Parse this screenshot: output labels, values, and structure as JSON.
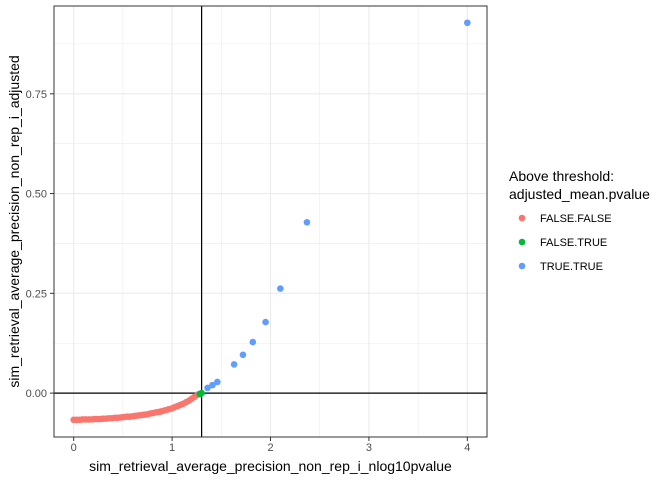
{
  "chart_data": {
    "type": "scatter",
    "xlabel": "sim_retrieval_average_precision_non_rep_i_nlog10pvalue",
    "ylabel": "sim_retrieval_average_precision_non_rep_i_adjusted",
    "xlim": [
      -0.2,
      4.2
    ],
    "ylim": [
      -0.11,
      0.97
    ],
    "x_ticks": [
      0,
      1,
      2,
      3,
      4
    ],
    "x_tick_labels": [
      "0",
      "1",
      "2",
      "3",
      "4"
    ],
    "y_ticks": [
      0.0,
      0.25,
      0.5,
      0.75
    ],
    "y_tick_labels": [
      "0.00",
      "0.25",
      "0.50",
      "0.75"
    ],
    "grid": true,
    "reference_lines": {
      "vertical_x": 1.3,
      "horizontal_y": 0.0
    },
    "legend": {
      "title_line1": "Above threshold:",
      "title_line2": "adjusted_mean.pvalue",
      "placement": "right"
    },
    "series": [
      {
        "name": "FALSE.FALSE",
        "color": "#F8766D",
        "points": [
          [
            0.0,
            -0.067
          ],
          [
            0.03,
            -0.067
          ],
          [
            0.06,
            -0.067
          ],
          [
            0.09,
            -0.066
          ],
          [
            0.12,
            -0.066
          ],
          [
            0.15,
            -0.066
          ],
          [
            0.18,
            -0.066
          ],
          [
            0.21,
            -0.065
          ],
          [
            0.24,
            -0.065
          ],
          [
            0.27,
            -0.065
          ],
          [
            0.3,
            -0.064
          ],
          [
            0.33,
            -0.064
          ],
          [
            0.36,
            -0.063
          ],
          [
            0.39,
            -0.063
          ],
          [
            0.42,
            -0.062
          ],
          [
            0.45,
            -0.062
          ],
          [
            0.48,
            -0.061
          ],
          [
            0.51,
            -0.06
          ],
          [
            0.54,
            -0.059
          ],
          [
            0.57,
            -0.059
          ],
          [
            0.6,
            -0.058
          ],
          [
            0.63,
            -0.057
          ],
          [
            0.66,
            -0.056
          ],
          [
            0.69,
            -0.055
          ],
          [
            0.72,
            -0.054
          ],
          [
            0.75,
            -0.053
          ],
          [
            0.78,
            -0.051
          ],
          [
            0.81,
            -0.05
          ],
          [
            0.84,
            -0.048
          ],
          [
            0.87,
            -0.047
          ],
          [
            0.9,
            -0.045
          ],
          [
            0.93,
            -0.043
          ],
          [
            0.96,
            -0.041
          ],
          [
            0.99,
            -0.039
          ],
          [
            1.02,
            -0.036
          ],
          [
            1.05,
            -0.033
          ],
          [
            1.08,
            -0.03
          ],
          [
            1.11,
            -0.027
          ],
          [
            1.14,
            -0.023
          ],
          [
            1.17,
            -0.019
          ],
          [
            1.2,
            -0.014
          ],
          [
            1.23,
            -0.009
          ],
          [
            1.26,
            -0.004
          ]
        ]
      },
      {
        "name": "FALSE.TRUE",
        "color": "#00BA38",
        "points": [
          [
            1.28,
            -0.002
          ],
          [
            1.3,
            0.0
          ]
        ]
      },
      {
        "name": "TRUE.TRUE",
        "color": "#619CFF",
        "points": [
          [
            1.36,
            0.013
          ],
          [
            1.41,
            0.02
          ],
          [
            1.46,
            0.028
          ],
          [
            1.63,
            0.072
          ],
          [
            1.72,
            0.096
          ],
          [
            1.82,
            0.128
          ],
          [
            1.95,
            0.178
          ],
          [
            2.1,
            0.262
          ],
          [
            2.37,
            0.428
          ],
          [
            4.0,
            0.928
          ]
        ]
      }
    ]
  }
}
